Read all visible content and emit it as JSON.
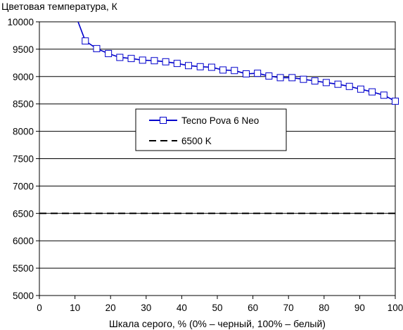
{
  "chart_data": {
    "type": "line",
    "ylabel": "Цветовая температура, К",
    "xlabel": "Шкала серого, % (0% – черный, 100% – белый)",
    "xlim": [
      0,
      100
    ],
    "ylim": [
      5000,
      10000
    ],
    "x_ticks": [
      0,
      10,
      20,
      30,
      40,
      50,
      60,
      70,
      80,
      90,
      100
    ],
    "y_ticks": [
      5000,
      5500,
      6000,
      6500,
      7000,
      7500,
      8000,
      8500,
      9000,
      9500,
      10000
    ],
    "grid": "horizontal",
    "legend_position": "inside, right of center",
    "series": [
      {
        "name": "Tecno Pova 6 Neo",
        "color": "#0000cc",
        "marker": "square",
        "x": [
          9.7,
          12.9,
          16.1,
          19.4,
          22.6,
          25.8,
          29.0,
          32.3,
          35.5,
          38.7,
          41.9,
          45.2,
          48.4,
          51.6,
          54.8,
          58.1,
          61.3,
          64.5,
          67.7,
          71.0,
          74.2,
          77.4,
          80.6,
          83.9,
          87.1,
          90.3,
          93.5,
          96.8,
          100.0
        ],
        "y": [
          10200,
          9650,
          9510,
          9420,
          9350,
          9330,
          9300,
          9290,
          9270,
          9240,
          9200,
          9180,
          9170,
          9120,
          9110,
          9050,
          9060,
          9010,
          8980,
          8980,
          8950,
          8920,
          8890,
          8860,
          8820,
          8770,
          8720,
          8660,
          8550
        ]
      },
      {
        "name": "6500 K",
        "color": "#000000",
        "dash": "dashed",
        "x": [
          0,
          100
        ],
        "y": [
          6500,
          6500
        ]
      }
    ]
  }
}
